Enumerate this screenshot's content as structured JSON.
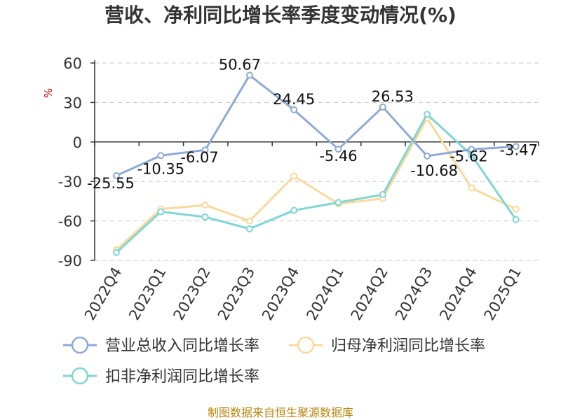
{
  "chart_data": {
    "type": "line",
    "title": "营收、净利同比增长率季度变动情况(%)",
    "unit_label": "%",
    "categories": [
      "2022Q4",
      "2023Q1",
      "2023Q2",
      "2023Q3",
      "2023Q4",
      "2024Q1",
      "2024Q2",
      "2024Q3",
      "2024Q4",
      "2025Q1"
    ],
    "ylim": [
      -90,
      60
    ],
    "yticks": [
      60,
      30,
      0,
      -30,
      -60,
      -90
    ],
    "y_tick_labels": [
      "60",
      "30",
      "0",
      "-30",
      "-60",
      "-90"
    ],
    "grid": true,
    "legend_position": "bottom",
    "series": [
      {
        "name": "营业总收入同比增长率",
        "color": "#8eaad7",
        "values": [
          -25.55,
          -10.35,
          -6.07,
          50.67,
          24.45,
          -5.46,
          26.53,
          -10.68,
          -5.62,
          -3.47
        ],
        "data_labels": [
          "-25.55",
          "-10.35",
          "-6.07",
          "50.67",
          "24.45",
          "-5.46",
          "26.53",
          "-10.68",
          "-5.62",
          "-3.47"
        ]
      },
      {
        "name": "归母净利润同比增长率",
        "color": "#fbd99a",
        "values": [
          -82,
          -51,
          -48,
          -60,
          -26,
          -47,
          -43,
          18,
          -35,
          -51
        ]
      },
      {
        "name": "扣非净利润同比增长率",
        "color": "#7fd6d4",
        "values": [
          -84,
          -53,
          -57,
          -66,
          -52,
          -46,
          -40,
          21,
          -10,
          -59
        ]
      }
    ]
  },
  "source": "制图数据来自恒生聚源数据库"
}
